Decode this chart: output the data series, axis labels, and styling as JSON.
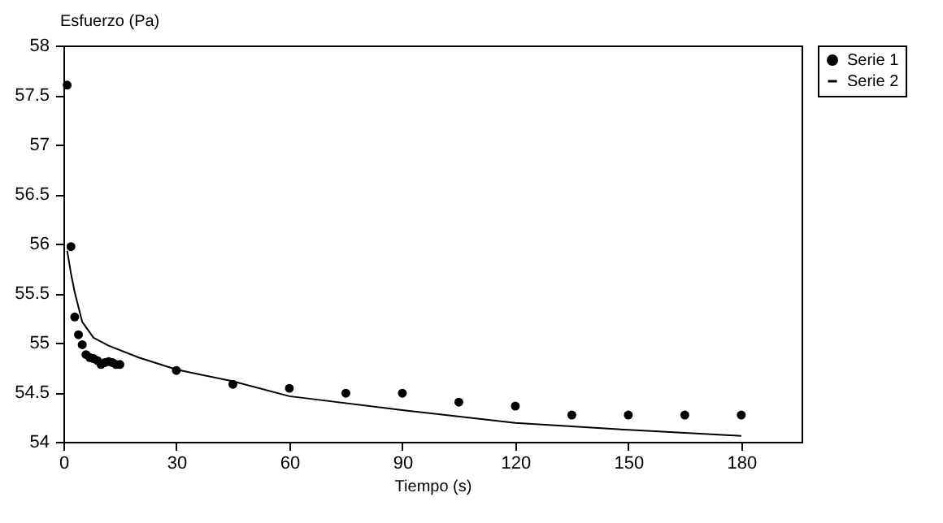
{
  "chart_data": {
    "type": "scatter",
    "xlabel": "Tiempo (s)",
    "ylabel": "Esfuerzo (Pa)",
    "xlim": [
      0,
      196
    ],
    "xticks": [
      0,
      30,
      60,
      90,
      120,
      150,
      180
    ],
    "ylim": [
      54,
      58
    ],
    "yticks": [
      54,
      54.5,
      55,
      55.5,
      56,
      56.5,
      57,
      57.5,
      58
    ],
    "grid": false,
    "legend": "right",
    "series": [
      {
        "name": "Serie 1",
        "marker": "circle",
        "color": "#000000",
        "x": [
          1,
          2,
          3,
          4,
          5,
          6,
          7,
          8,
          9,
          10,
          11,
          12,
          13,
          14,
          15,
          30,
          45,
          60,
          75,
          90,
          105,
          120,
          135,
          150,
          165,
          180
        ],
        "values": [
          57.6,
          55.97,
          55.26,
          55.08,
          54.98,
          54.88,
          54.85,
          54.84,
          54.82,
          54.78,
          54.8,
          54.81,
          54.8,
          54.78,
          54.78,
          54.72,
          54.58,
          54.54,
          54.49,
          54.49,
          54.4,
          54.36,
          54.27,
          54.27,
          54.27,
          54.27
        ]
      },
      {
        "name": "Serie 2",
        "type": "line",
        "marker": "none",
        "line_style": "solid",
        "color": "#000000",
        "x": [
          1,
          2,
          3,
          5,
          8,
          12,
          20,
          30,
          45,
          60,
          90,
          120,
          150,
          180
        ],
        "values": [
          55.93,
          55.7,
          55.51,
          55.21,
          55.05,
          54.97,
          54.85,
          54.73,
          54.61,
          54.46,
          54.32,
          54.19,
          54.12,
          54.06
        ]
      }
    ]
  }
}
